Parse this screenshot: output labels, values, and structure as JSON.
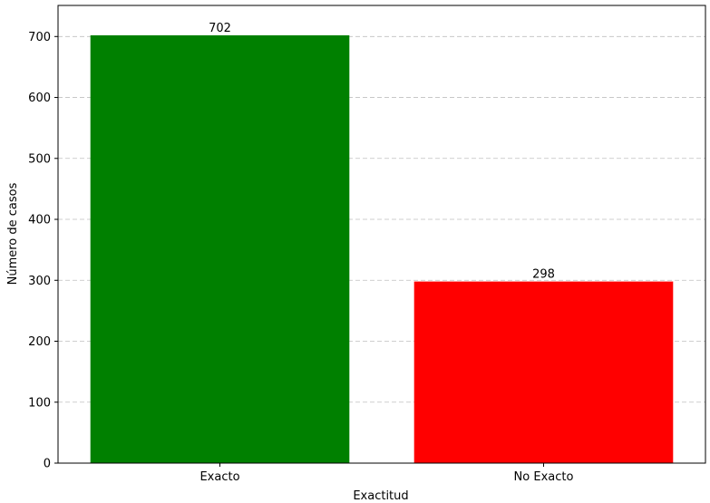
{
  "chart_data": {
    "type": "bar",
    "title": "",
    "xlabel": "Exactitud",
    "ylabel": "Número de casos",
    "categories": [
      "Exacto",
      "No Exacto"
    ],
    "values": [
      702,
      298
    ],
    "data_labels": [
      "702",
      "298"
    ],
    "colors": [
      "#008000",
      "#ff0000"
    ],
    "ylim": [
      0,
      751
    ],
    "yticks": [
      0,
      100,
      200,
      300,
      400,
      500,
      600,
      700
    ],
    "grid": true,
    "grid_axis": "y"
  }
}
